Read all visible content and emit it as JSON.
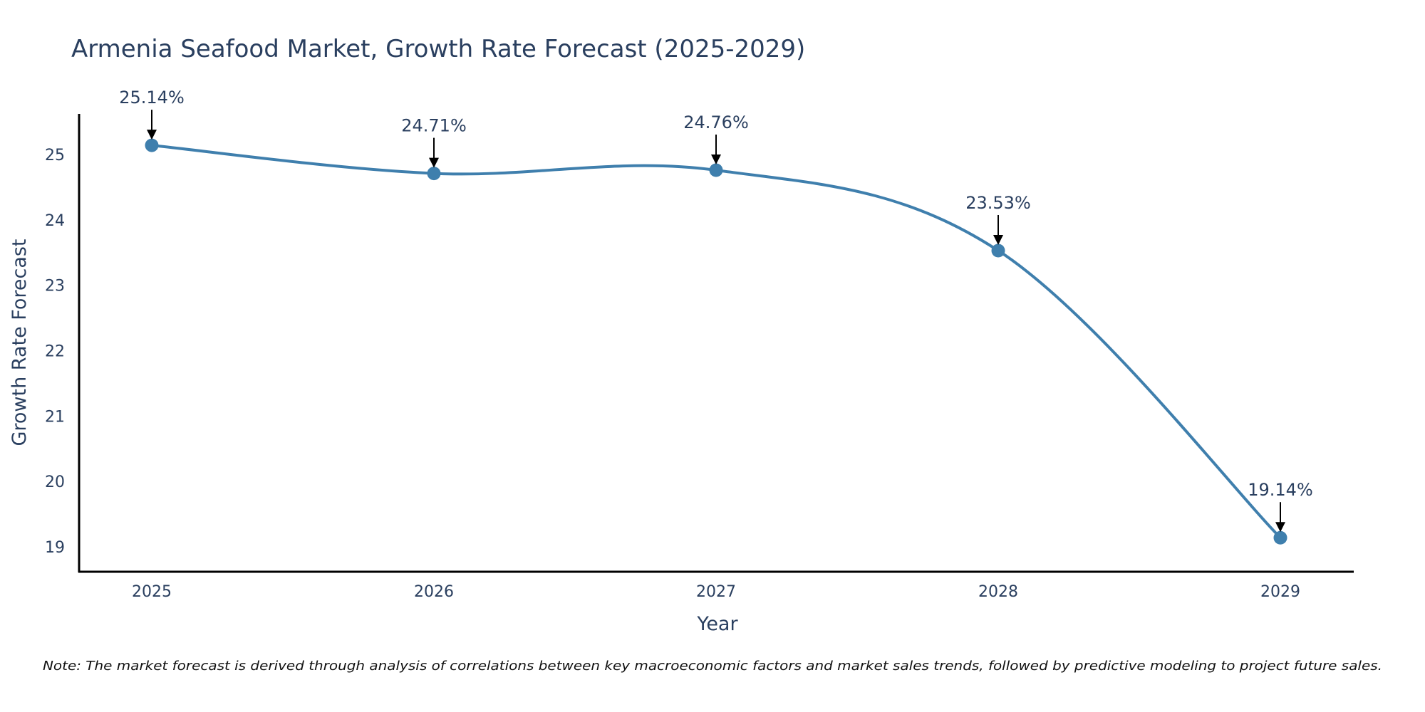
{
  "chart_data": {
    "type": "line",
    "title": "Armenia Seafood Market, Growth Rate Forecast (2025-2029)",
    "xlabel": "Year",
    "ylabel": "Growth Rate Forecast",
    "categories": [
      "2025",
      "2026",
      "2027",
      "2028",
      "2029"
    ],
    "series": [
      {
        "name": "Growth Rate Forecast",
        "values": [
          25.14,
          24.71,
          24.76,
          23.53,
          19.14
        ]
      }
    ],
    "annotations": [
      "25.14%",
      "24.71%",
      "24.76%",
      "23.53%",
      "19.14%"
    ],
    "yticks": [
      "19",
      "20",
      "21",
      "22",
      "23",
      "24",
      "25"
    ],
    "ylim": [
      18.62,
      25.62
    ],
    "grid": false,
    "line_color": "#3f7fad",
    "marker_color": "#3f7fad"
  },
  "note": "Note: The market forecast is derived through analysis of correlations between key macroeconomic factors and market sales trends, followed by predictive modeling to project future sales."
}
